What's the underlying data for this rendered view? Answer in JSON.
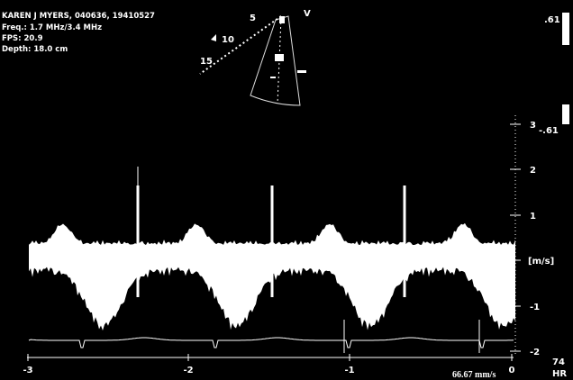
{
  "header": {
    "patient": "KAREN J MYERS, 040636, 19410527",
    "freq": "Freq.: 1.7 MHz/3.4 MHz",
    "fps": "FPS: 20.9",
    "depth": "Depth: 18.0 cm"
  },
  "sector": {
    "mode": "V",
    "depth_labels": [
      "5",
      "10",
      "15"
    ]
  },
  "right_panel": {
    "top_value": ".61",
    "scale_value": "-.61"
  },
  "velocity_axis": {
    "unit": "[m/s]",
    "ticks": [
      "3",
      "2",
      "1",
      "-1",
      "-2"
    ]
  },
  "time_axis": {
    "ticks": [
      "-3",
      "-2",
      "-1",
      "0"
    ]
  },
  "sweep_speed": "66.67 mm/s",
  "heart_rate": {
    "value": "74",
    "label": "HR"
  }
}
